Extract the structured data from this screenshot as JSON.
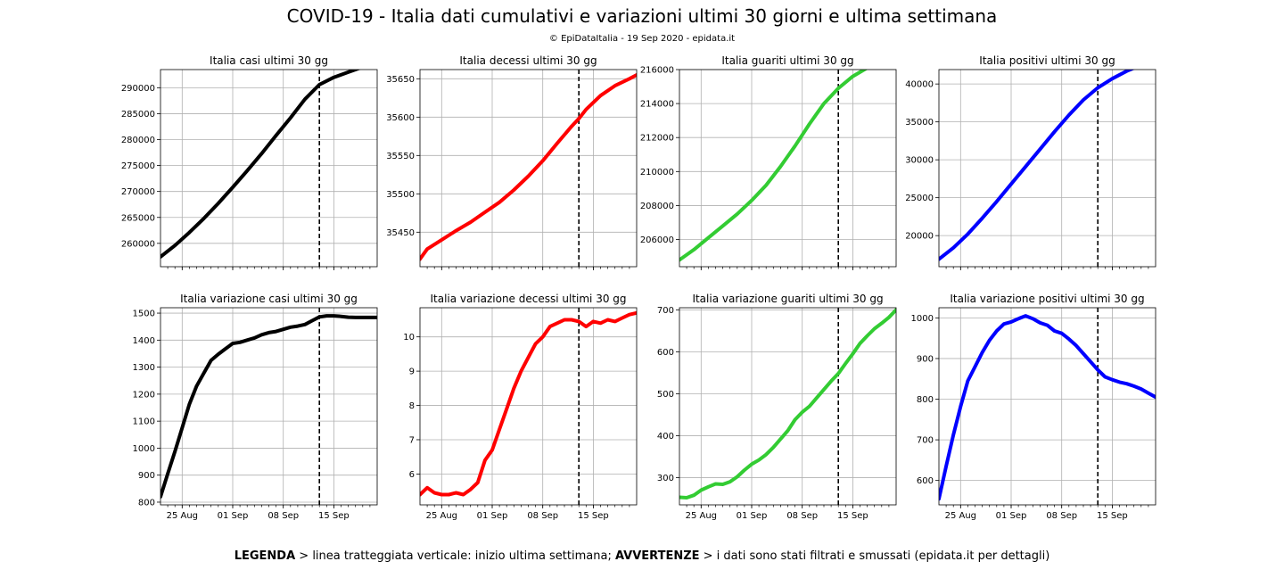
{
  "header": {
    "title": "COVID-19 - Italia dati cumulativi e variazioni ultimi 30 giorni e ultima settimana",
    "subtitle": "© EpiDataItalia - 19 Sep 2020 - epidata.it"
  },
  "legend": {
    "label1": "LEGENDA",
    "text1": " > linea tratteggiata verticale: inizio ultima settimana; ",
    "label2": "AVVERTENZE",
    "text2": " > i dati sono stati filtrati e smussati (epidata.it per dettagli)"
  },
  "chart_data": [
    {
      "type": "line",
      "title": "Italia casi ultimi 30 gg",
      "color": "#000000",
      "x_range": [
        0,
        30
      ],
      "vline": 22,
      "yticks": [
        260000,
        265000,
        270000,
        275000,
        280000,
        285000,
        290000
      ],
      "ylim": [
        255500,
        293500
      ],
      "x_tick_labels": [],
      "points": [
        [
          0,
          257400
        ],
        [
          2,
          259600
        ],
        [
          4,
          262100
        ],
        [
          6,
          264800
        ],
        [
          8,
          267700
        ],
        [
          10,
          270800
        ],
        [
          12,
          274000
        ],
        [
          14,
          277300
        ],
        [
          16,
          280800
        ],
        [
          18,
          284200
        ],
        [
          20,
          287800
        ],
        [
          22,
          290600
        ],
        [
          24,
          292000
        ],
        [
          26,
          293000
        ],
        [
          28,
          294000
        ],
        [
          30,
          294800
        ]
      ]
    },
    {
      "type": "line",
      "title": "Italia decessi ultimi 30 gg",
      "color": "#ff0000",
      "x_range": [
        0,
        30
      ],
      "vline": 22,
      "yticks": [
        35450,
        35500,
        35550,
        35600,
        35650
      ],
      "ylim": [
        35405,
        35662
      ],
      "x_tick_labels": [],
      "points": [
        [
          0,
          35415
        ],
        [
          1,
          35428
        ],
        [
          3,
          35440
        ],
        [
          5,
          35452
        ],
        [
          7,
          35463
        ],
        [
          9,
          35476
        ],
        [
          11,
          35489
        ],
        [
          13,
          35505
        ],
        [
          15,
          35523
        ],
        [
          17,
          35543
        ],
        [
          19,
          35566
        ],
        [
          21,
          35588
        ],
        [
          22,
          35598
        ],
        [
          23,
          35610
        ],
        [
          25,
          35628
        ],
        [
          27,
          35641
        ],
        [
          29,
          35650
        ],
        [
          30,
          35655
        ]
      ]
    },
    {
      "type": "line",
      "title": "Italia guariti ultimi 30 gg",
      "color": "#33cc33",
      "x_range": [
        0,
        30
      ],
      "vline": 22,
      "yticks": [
        206000,
        208000,
        210000,
        212000,
        214000,
        216000
      ],
      "ylim": [
        204400,
        216000
      ],
      "x_tick_labels": [],
      "points": [
        [
          0,
          204800
        ],
        [
          2,
          205400
        ],
        [
          4,
          206100
        ],
        [
          6,
          206800
        ],
        [
          8,
          207500
        ],
        [
          10,
          208300
        ],
        [
          12,
          209200
        ],
        [
          14,
          210300
        ],
        [
          16,
          211500
        ],
        [
          18,
          212800
        ],
        [
          20,
          214000
        ],
        [
          22,
          214900
        ],
        [
          24,
          215600
        ],
        [
          26,
          216100
        ],
        [
          28,
          216600
        ],
        [
          30,
          217000
        ]
      ]
    },
    {
      "type": "line",
      "title": "Italia positivi ultimi 30 gg",
      "color": "#0000ff",
      "x_range": [
        0,
        30
      ],
      "vline": 22,
      "yticks": [
        20000,
        25000,
        30000,
        35000,
        40000
      ],
      "ylim": [
        15900,
        41900
      ],
      "x_tick_labels": [],
      "points": [
        [
          0,
          16900
        ],
        [
          2,
          18400
        ],
        [
          4,
          20200
        ],
        [
          6,
          22300
        ],
        [
          8,
          24500
        ],
        [
          10,
          26800
        ],
        [
          12,
          29100
        ],
        [
          14,
          31400
        ],
        [
          16,
          33700
        ],
        [
          18,
          35900
        ],
        [
          20,
          37900
        ],
        [
          22,
          39500
        ],
        [
          24,
          40700
        ],
        [
          26,
          41700
        ],
        [
          28,
          42500
        ],
        [
          30,
          43200
        ]
      ]
    },
    {
      "type": "line",
      "title": "Italia variazione casi ultimi 30 gg",
      "color": "#000000",
      "x_range": [
        0,
        30
      ],
      "vline": 22,
      "yticks": [
        800,
        900,
        1000,
        1100,
        1200,
        1300,
        1400,
        1500
      ],
      "ylim": [
        790,
        1520
      ],
      "x_tick_labels": [
        [
          "25 Aug",
          3
        ],
        [
          "01 Sep",
          10
        ],
        [
          "08 Sep",
          17
        ],
        [
          "15 Sep",
          24
        ]
      ],
      "points": [
        [
          0,
          820
        ],
        [
          1,
          905
        ],
        [
          2,
          988
        ],
        [
          3,
          1075
        ],
        [
          4,
          1163
        ],
        [
          5,
          1230
        ],
        [
          6,
          1278
        ],
        [
          7,
          1325
        ],
        [
          8,
          1348
        ],
        [
          9,
          1368
        ],
        [
          10,
          1388
        ],
        [
          11,
          1392
        ],
        [
          12,
          1400
        ],
        [
          13,
          1408
        ],
        [
          14,
          1420
        ],
        [
          15,
          1428
        ],
        [
          16,
          1432
        ],
        [
          17,
          1440
        ],
        [
          18,
          1448
        ],
        [
          19,
          1452
        ],
        [
          20,
          1458
        ],
        [
          21,
          1472
        ],
        [
          22,
          1486
        ],
        [
          23,
          1490
        ],
        [
          24,
          1490
        ],
        [
          25,
          1488
        ],
        [
          26,
          1485
        ],
        [
          27,
          1484
        ],
        [
          28,
          1484
        ],
        [
          29,
          1484
        ],
        [
          30,
          1484
        ]
      ]
    },
    {
      "type": "line",
      "title": "Italia variazione decessi ultimi 30 gg",
      "color": "#ff0000",
      "x_range": [
        0,
        30
      ],
      "vline": 22,
      "yticks": [
        6,
        7,
        8,
        9,
        10
      ],
      "ylim": [
        5.1,
        10.85
      ],
      "x_tick_labels": [
        [
          "25 Aug",
          3
        ],
        [
          "01 Sep",
          10
        ],
        [
          "08 Sep",
          17
        ],
        [
          "15 Sep",
          24
        ]
      ],
      "points": [
        [
          0,
          5.4
        ],
        [
          1,
          5.6
        ],
        [
          2,
          5.45
        ],
        [
          3,
          5.4
        ],
        [
          4,
          5.4
        ],
        [
          5,
          5.45
        ],
        [
          6,
          5.4
        ],
        [
          7,
          5.55
        ],
        [
          8,
          5.75
        ],
        [
          9,
          6.4
        ],
        [
          10,
          6.7
        ],
        [
          11,
          7.3
        ],
        [
          12,
          7.9
        ],
        [
          13,
          8.5
        ],
        [
          14,
          9.0
        ],
        [
          15,
          9.4
        ],
        [
          16,
          9.8
        ],
        [
          17,
          10.0
        ],
        [
          18,
          10.3
        ],
        [
          19,
          10.4
        ],
        [
          20,
          10.5
        ],
        [
          21,
          10.5
        ],
        [
          22,
          10.45
        ],
        [
          23,
          10.3
        ],
        [
          24,
          10.45
        ],
        [
          25,
          10.4
        ],
        [
          26,
          10.5
        ],
        [
          27,
          10.45
        ],
        [
          28,
          10.55
        ],
        [
          29,
          10.65
        ],
        [
          30,
          10.7
        ]
      ]
    },
    {
      "type": "line",
      "title": "Italia variazione guariti ultimi 30 gg",
      "color": "#33cc33",
      "x_range": [
        0,
        30
      ],
      "vline": 22,
      "yticks": [
        300,
        400,
        500,
        600,
        700
      ],
      "ylim": [
        235,
        705
      ],
      "x_tick_labels": [
        [
          "25 Aug",
          3
        ],
        [
          "01 Sep",
          10
        ],
        [
          "08 Sep",
          17
        ],
        [
          "15 Sep",
          24
        ]
      ],
      "points": [
        [
          0,
          253
        ],
        [
          1,
          252
        ],
        [
          2,
          258
        ],
        [
          3,
          270
        ],
        [
          4,
          278
        ],
        [
          5,
          285
        ],
        [
          6,
          284
        ],
        [
          7,
          290
        ],
        [
          8,
          302
        ],
        [
          9,
          318
        ],
        [
          10,
          332
        ],
        [
          11,
          342
        ],
        [
          12,
          355
        ],
        [
          13,
          372
        ],
        [
          14,
          392
        ],
        [
          15,
          412
        ],
        [
          16,
          438
        ],
        [
          17,
          456
        ],
        [
          18,
          470
        ],
        [
          19,
          490
        ],
        [
          20,
          510
        ],
        [
          21,
          530
        ],
        [
          22,
          548
        ],
        [
          23,
          572
        ],
        [
          24,
          595
        ],
        [
          25,
          620
        ],
        [
          26,
          638
        ],
        [
          27,
          655
        ],
        [
          28,
          668
        ],
        [
          29,
          682
        ],
        [
          30,
          700
        ]
      ]
    },
    {
      "type": "line",
      "title": "Italia variazione positivi ultimi 30 gg",
      "color": "#0000ff",
      "x_range": [
        0,
        30
      ],
      "vline": 22,
      "yticks": [
        600,
        700,
        800,
        900,
        1000
      ],
      "ylim": [
        540,
        1025
      ],
      "x_tick_labels": [
        [
          "25 Aug",
          3
        ],
        [
          "01 Sep",
          10
        ],
        [
          "08 Sep",
          17
        ],
        [
          "15 Sep",
          24
        ]
      ],
      "points": [
        [
          0,
          555
        ],
        [
          1,
          635
        ],
        [
          2,
          712
        ],
        [
          3,
          782
        ],
        [
          4,
          845
        ],
        [
          5,
          880
        ],
        [
          6,
          915
        ],
        [
          7,
          945
        ],
        [
          8,
          968
        ],
        [
          9,
          985
        ],
        [
          10,
          990
        ],
        [
          11,
          998
        ],
        [
          12,
          1005
        ],
        [
          13,
          998
        ],
        [
          14,
          988
        ],
        [
          15,
          982
        ],
        [
          16,
          968
        ],
        [
          17,
          962
        ],
        [
          18,
          948
        ],
        [
          19,
          932
        ],
        [
          20,
          912
        ],
        [
          21,
          892
        ],
        [
          22,
          872
        ],
        [
          23,
          855
        ],
        [
          24,
          848
        ],
        [
          25,
          842
        ],
        [
          26,
          838
        ],
        [
          27,
          832
        ],
        [
          28,
          825
        ],
        [
          29,
          815
        ],
        [
          30,
          805
        ]
      ]
    }
  ]
}
